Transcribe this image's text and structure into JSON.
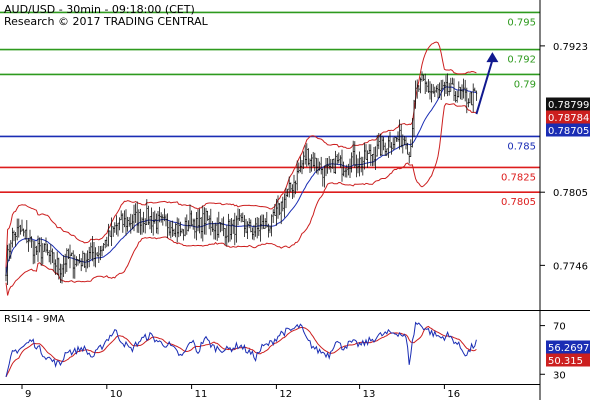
{
  "header": {
    "line1": "AUD/USD - 30min - 09:18:00 (CET)",
    "line2": "Research © 2017 TRADING CENTRAL"
  },
  "colors": {
    "resistance": "#2e9a1e",
    "pivot": "#1a2db4",
    "support": "#dd1c1c",
    "candle": "#111111",
    "bollinger": "#cc1f1f",
    "moving_average": "#1a2db4",
    "rsi": "#1a2db4",
    "rsi_ma": "#cc1f1f",
    "arrow": "#11198f",
    "price_badge": "#111111",
    "bb_badge": "#cc1f1f",
    "ma_badge": "#1a2db4"
  },
  "chart_data": [
    {
      "type": "candlestick",
      "title": "AUD/USD - 30min - 09:18:00 (CET)",
      "ylim": [
        0.771,
        0.796
      ],
      "yticks": [
        {
          "value": 0.7923,
          "label": "0.7923"
        },
        {
          "value": 0.7805,
          "label": "0.7805"
        },
        {
          "value": 0.7746,
          "label": "0.7746"
        }
      ],
      "x_labels": [
        {
          "pos": 10,
          "label": "9"
        },
        {
          "pos": 63,
          "label": "10"
        },
        {
          "pos": 116,
          "label": "11"
        },
        {
          "pos": 169,
          "label": "12"
        },
        {
          "pos": 221,
          "label": "13"
        },
        {
          "pos": 274,
          "label": "16"
        }
      ],
      "levels": [
        {
          "value": 0.795,
          "label": "0.795",
          "kind": "resistance"
        },
        {
          "value": 0.792,
          "label": "0.792",
          "kind": "resistance"
        },
        {
          "value": 0.79,
          "label": "0.79",
          "kind": "resistance"
        },
        {
          "value": 0.785,
          "label": "0.785",
          "kind": "pivot"
        },
        {
          "value": 0.7825,
          "label": "0.7825",
          "kind": "support"
        },
        {
          "value": 0.7805,
          "label": "0.7805",
          "kind": "support"
        }
      ],
      "badges": [
        {
          "value": 0.78799,
          "label": "0.78799",
          "kind": "price"
        },
        {
          "value": 0.78784,
          "label": "0.78784",
          "kind": "bb"
        },
        {
          "value": 0.78705,
          "label": "0.78705",
          "kind": "ma"
        }
      ],
      "anchors": [
        [
          0,
          0.7745
        ],
        [
          3,
          0.7768
        ],
        [
          8,
          0.7774
        ],
        [
          14,
          0.7768
        ],
        [
          18,
          0.7758
        ],
        [
          24,
          0.7757
        ],
        [
          30,
          0.7749
        ],
        [
          34,
          0.7744
        ],
        [
          38,
          0.7752
        ],
        [
          42,
          0.775
        ],
        [
          48,
          0.775
        ],
        [
          54,
          0.7756
        ],
        [
          58,
          0.7757
        ],
        [
          64,
          0.7768
        ],
        [
          70,
          0.778
        ],
        [
          76,
          0.7781
        ],
        [
          82,
          0.7784
        ],
        [
          88,
          0.7785
        ],
        [
          92,
          0.7782
        ],
        [
          98,
          0.7779
        ],
        [
          104,
          0.778
        ],
        [
          110,
          0.7772
        ],
        [
          116,
          0.7784
        ],
        [
          120,
          0.7776
        ],
        [
          124,
          0.7784
        ],
        [
          130,
          0.7778
        ],
        [
          138,
          0.7775
        ],
        [
          146,
          0.7779
        ],
        [
          152,
          0.7775
        ],
        [
          156,
          0.7774
        ],
        [
          160,
          0.7778
        ],
        [
          166,
          0.7779
        ],
        [
          172,
          0.7795
        ],
        [
          178,
          0.7808
        ],
        [
          184,
          0.7825
        ],
        [
          188,
          0.7836
        ],
        [
          194,
          0.7828
        ],
        [
          198,
          0.7823
        ],
        [
          202,
          0.782
        ],
        [
          206,
          0.783
        ],
        [
          210,
          0.7826
        ],
        [
          216,
          0.7832
        ],
        [
          222,
          0.7829
        ],
        [
          228,
          0.7836
        ],
        [
          234,
          0.784
        ],
        [
          240,
          0.7846
        ],
        [
          246,
          0.7848
        ],
        [
          250,
          0.785
        ],
        [
          252,
          0.7835
        ],
        [
          256,
          0.7885
        ],
        [
          260,
          0.7893
        ],
        [
          266,
          0.7886
        ],
        [
          272,
          0.7885
        ],
        [
          276,
          0.7887
        ],
        [
          280,
          0.7885
        ],
        [
          284,
          0.7884
        ],
        [
          288,
          0.7881
        ],
        [
          291,
          0.7881
        ],
        [
          294,
          0.7883
        ]
      ],
      "arrow": {
        "from": [
          294,
          0.7868
        ],
        "to": [
          304,
          0.7918
        ]
      }
    },
    {
      "type": "line",
      "title": "RSI14 - 9MA",
      "ylim": [
        22,
        82
      ],
      "yticks": [
        {
          "value": 70,
          "label": "70"
        },
        {
          "value": 30,
          "label": "30"
        }
      ],
      "badges": [
        {
          "value": 56.2697,
          "label": "56.2697",
          "kind": "ma"
        },
        {
          "value": 50.315,
          "label": "50.315",
          "kind": "bb"
        }
      ],
      "anchors": [
        [
          0,
          25
        ],
        [
          4,
          48
        ],
        [
          10,
          52
        ],
        [
          16,
          58
        ],
        [
          24,
          46
        ],
        [
          30,
          40
        ],
        [
          34,
          38
        ],
        [
          38,
          50
        ],
        [
          42,
          48
        ],
        [
          48,
          52
        ],
        [
          54,
          44
        ],
        [
          58,
          50
        ],
        [
          64,
          60
        ],
        [
          68,
          66
        ],
        [
          72,
          58
        ],
        [
          78,
          50
        ],
        [
          84,
          58
        ],
        [
          90,
          62
        ],
        [
          96,
          56
        ],
        [
          102,
          54
        ],
        [
          110,
          44
        ],
        [
          116,
          58
        ],
        [
          120,
          48
        ],
        [
          124,
          60
        ],
        [
          130,
          52
        ],
        [
          138,
          50
        ],
        [
          146,
          54
        ],
        [
          152,
          48
        ],
        [
          156,
          44
        ],
        [
          160,
          52
        ],
        [
          166,
          56
        ],
        [
          172,
          64
        ],
        [
          178,
          66
        ],
        [
          184,
          70
        ],
        [
          188,
          58
        ],
        [
          194,
          50
        ],
        [
          198,
          48
        ],
        [
          202,
          46
        ],
        [
          206,
          58
        ],
        [
          210,
          52
        ],
        [
          216,
          56
        ],
        [
          222,
          54
        ],
        [
          228,
          58
        ],
        [
          234,
          62
        ],
        [
          240,
          64
        ],
        [
          246,
          64
        ],
        [
          250,
          60
        ],
        [
          252,
          40
        ],
        [
          256,
          72
        ],
        [
          260,
          70
        ],
        [
          266,
          64
        ],
        [
          272,
          60
        ],
        [
          276,
          62
        ],
        [
          280,
          58
        ],
        [
          284,
          52
        ],
        [
          288,
          46
        ],
        [
          291,
          52
        ],
        [
          294,
          56
        ]
      ]
    }
  ]
}
